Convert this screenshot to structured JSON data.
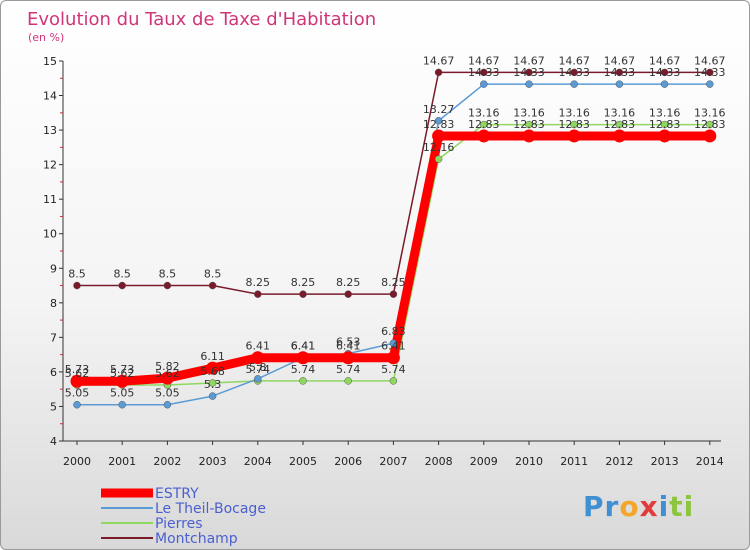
{
  "chart_data": {
    "type": "line",
    "title": "Evolution du Taux de Taxe d'Habitation",
    "subtitle": "(en %)",
    "xlabel": "",
    "ylabel": "(en %)",
    "ylim": [
      4,
      15
    ],
    "yticks": [
      "4",
      "5",
      "6",
      "7",
      "8",
      "9",
      "10",
      "11",
      "12",
      "13",
      "14",
      "15"
    ],
    "categories": [
      "2000",
      "2001",
      "2002",
      "2003",
      "2004",
      "2005",
      "2006",
      "2007",
      "2008",
      "2009",
      "2010",
      "2011",
      "2012",
      "2013",
      "2014"
    ],
    "grid": false,
    "series": [
      {
        "name": "Montchamp",
        "color": "#7a1a2a",
        "values": [
          8.5,
          8.5,
          8.5,
          8.5,
          8.25,
          8.25,
          8.25,
          8.25,
          14.67,
          14.67,
          14.67,
          14.67,
          14.67,
          14.67,
          14.67
        ],
        "labels": [
          "8.5",
          "8.5",
          "8.5",
          "8.5",
          "8.25",
          "8.25",
          "8.25",
          "8.25",
          "14.67",
          "14.67",
          "14.67",
          "14.67",
          "14.67",
          "14.67",
          "14.67"
        ]
      },
      {
        "name": "Pierres",
        "color": "#8fd860",
        "values": [
          5.62,
          5.62,
          5.62,
          5.68,
          5.74,
          5.74,
          5.74,
          5.74,
          12.16,
          13.16,
          13.16,
          13.16,
          13.16,
          13.16,
          13.16
        ],
        "labels": [
          "5.62",
          "5.62",
          "5.62",
          "5.68",
          "5.74",
          "5.74",
          "5.74",
          "5.74",
          "12.16",
          "13.16",
          "13.16",
          "13.16",
          "13.16",
          "13.16",
          "13.16"
        ]
      },
      {
        "name": "Le Theil-Bocage",
        "color": "#5b9bd5",
        "values": [
          5.05,
          5.05,
          5.05,
          5.3,
          5.8,
          6.41,
          6.53,
          6.83,
          13.27,
          14.33,
          14.33,
          14.33,
          14.33,
          14.33,
          14.33
        ],
        "labels": [
          "5.05",
          "5.05",
          "5.05",
          "5.3",
          "5.8",
          "6.41",
          "6.53",
          "6.83",
          "13.27",
          "14.33",
          "14.33",
          "14.33",
          "14.33",
          "14.33",
          "14.33"
        ]
      },
      {
        "name": "ESTRY",
        "color": "#ff0000",
        "values": [
          5.73,
          5.73,
          5.82,
          6.11,
          6.41,
          6.41,
          6.41,
          6.41,
          12.83,
          12.83,
          12.83,
          12.83,
          12.83,
          12.83,
          12.83
        ],
        "labels": [
          "5.73",
          "5.73",
          "5.82",
          "6.11",
          "6.41",
          "6.41",
          "6.41",
          "6.41",
          "12.83",
          "12.83",
          "12.83",
          "12.83",
          "12.83",
          "12.83",
          "12.83"
        ]
      }
    ],
    "legend": [
      "ESTRY",
      "Le Theil-Bocage",
      "Pierres",
      "Montchamp"
    ]
  },
  "brand": {
    "logo": "Proxiti",
    "letters": [
      "P",
      "r",
      "o",
      "x",
      "i",
      "t",
      "i"
    ],
    "colors": [
      "#3f8fd2",
      "#3f8fd2",
      "#f4a62a",
      "#e23b3b",
      "#3f8fd2",
      "#8cc63e",
      "#8cc63e"
    ]
  }
}
